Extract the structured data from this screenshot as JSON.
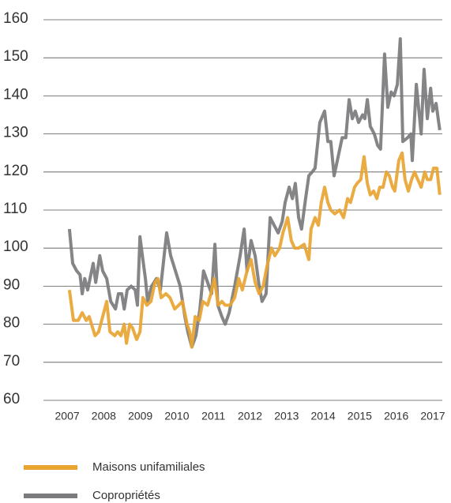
{
  "chart_data": {
    "type": "line",
    "xlim": [
      2006.35,
      2017.26
    ],
    "xticks": [
      2007,
      2008,
      2009,
      2010,
      2011,
      2012,
      2013,
      2014,
      2015,
      2016,
      2017
    ],
    "ylim": [
      60,
      160
    ],
    "yticks": [
      60,
      70,
      80,
      90,
      100,
      110,
      120,
      130,
      140,
      150,
      160
    ],
    "grid": true,
    "series": [
      {
        "name": "Copropriétés",
        "color": "#7b7b7d",
        "x": [
          2007.06,
          2007.15,
          2007.26,
          2007.35,
          2007.41,
          2007.48,
          2007.56,
          2007.71,
          2007.78,
          2007.89,
          2007.97,
          2008.08,
          2008.19,
          2008.32,
          2008.4,
          2008.49,
          2008.56,
          2008.64,
          2008.75,
          2008.86,
          2008.92,
          2008.99,
          2009.07,
          2009.14,
          2009.2,
          2009.31,
          2009.44,
          2009.55,
          2009.72,
          2009.83,
          2009.96,
          2010.09,
          2010.22,
          2010.3,
          2010.41,
          2010.52,
          2010.63,
          2010.73,
          2010.84,
          2010.95,
          2011.04,
          2011.12,
          2011.23,
          2011.32,
          2011.43,
          2011.58,
          2011.73,
          2011.84,
          2011.92,
          2012.03,
          2012.14,
          2012.25,
          2012.33,
          2012.44,
          2012.55,
          2012.66,
          2012.77,
          2012.88,
          2012.96,
          2013.07,
          2013.16,
          2013.24,
          2013.33,
          2013.41,
          2013.52,
          2013.61,
          2013.7,
          2013.78,
          2013.91,
          2014.04,
          2014.13,
          2014.21,
          2014.3,
          2014.41,
          2014.52,
          2014.62,
          2014.71,
          2014.8,
          2014.88,
          2014.97,
          2015.08,
          2015.14,
          2015.21,
          2015.29,
          2015.4,
          2015.49,
          2015.57,
          2015.68,
          2015.77,
          2015.86,
          2015.94,
          2016.03,
          2016.11,
          2016.18,
          2016.31,
          2016.4,
          2016.44,
          2016.55,
          2016.68,
          2016.76,
          2016.85,
          2016.94,
          2017.0,
          2017.09,
          2017.19
        ],
        "values": [
          105,
          96,
          94,
          93,
          88,
          92,
          89,
          96,
          91,
          98,
          94,
          92,
          86,
          84,
          88,
          88,
          84,
          89,
          90,
          89,
          85,
          103,
          97,
          92,
          86,
          90,
          92,
          89,
          104,
          98,
          94,
          90,
          82,
          78,
          74,
          77,
          84,
          94,
          91,
          88,
          101,
          85,
          82,
          80,
          83,
          90,
          98,
          105,
          94,
          102,
          98,
          90,
          86,
          88,
          108,
          106,
          104,
          107,
          112,
          116,
          113,
          117,
          108,
          105,
          113,
          119,
          120,
          121,
          133,
          136,
          128,
          128,
          119,
          124,
          129,
          129,
          139,
          134,
          136,
          133,
          135,
          134,
          139,
          132,
          130,
          127,
          126,
          151,
          137,
          141,
          140,
          143,
          155,
          128,
          129,
          130,
          123,
          143,
          130,
          147,
          134,
          142,
          136,
          138,
          131
        ]
      },
      {
        "name": "Maisons unifamiliales",
        "color": "#e8a532",
        "x": [
          2007.06,
          2007.17,
          2007.3,
          2007.41,
          2007.52,
          2007.6,
          2007.76,
          2007.86,
          2007.97,
          2008.08,
          2008.17,
          2008.3,
          2008.38,
          2008.47,
          2008.56,
          2008.62,
          2008.71,
          2008.79,
          2008.9,
          2008.99,
          2009.07,
          2009.18,
          2009.29,
          2009.4,
          2009.48,
          2009.57,
          2009.7,
          2009.81,
          2009.94,
          2010.05,
          2010.15,
          2010.28,
          2010.35,
          2010.41,
          2010.5,
          2010.61,
          2010.71,
          2010.84,
          2010.93,
          2011.02,
          2011.13,
          2011.23,
          2011.32,
          2011.45,
          2011.58,
          2011.69,
          2011.79,
          2011.92,
          2012.03,
          2012.14,
          2012.25,
          2012.36,
          2012.46,
          2012.59,
          2012.68,
          2012.81,
          2012.9,
          2013.03,
          2013.13,
          2013.22,
          2013.33,
          2013.48,
          2013.61,
          2013.67,
          2013.78,
          2013.87,
          2013.95,
          2014.04,
          2014.13,
          2014.21,
          2014.32,
          2014.45,
          2014.56,
          2014.67,
          2014.75,
          2014.86,
          2014.93,
          2015.03,
          2015.12,
          2015.21,
          2015.29,
          2015.38,
          2015.47,
          2015.55,
          2015.64,
          2015.73,
          2015.81,
          2015.9,
          2015.96,
          2016.07,
          2016.16,
          2016.24,
          2016.33,
          2016.42,
          2016.5,
          2016.59,
          2016.68,
          2016.78,
          2016.85,
          2016.94,
          2017.02,
          2017.11,
          2017.19
        ],
        "values": [
          89,
          81,
          81,
          83,
          81,
          82,
          77,
          78,
          82,
          86,
          78,
          77,
          78,
          77,
          80,
          75,
          80,
          79,
          76,
          78,
          87,
          85,
          86,
          91,
          92,
          87,
          88,
          87,
          84,
          85,
          86,
          80,
          78,
          74,
          82,
          81,
          86,
          85,
          88,
          92,
          85,
          86,
          85,
          85,
          87,
          92,
          89,
          94,
          97,
          91,
          88,
          90,
          95,
          100,
          98,
          100,
          104,
          108,
          102,
          100,
          100,
          101,
          97,
          105,
          108,
          106,
          112,
          116,
          112,
          110,
          109,
          110,
          108,
          113,
          112,
          116,
          117,
          118,
          124,
          117,
          114,
          115,
          113,
          116,
          116,
          120,
          119,
          116,
          115,
          123,
          125,
          118,
          115,
          118,
          120,
          118,
          116,
          120,
          118,
          118,
          121,
          121,
          114
        ]
      }
    ]
  }
}
